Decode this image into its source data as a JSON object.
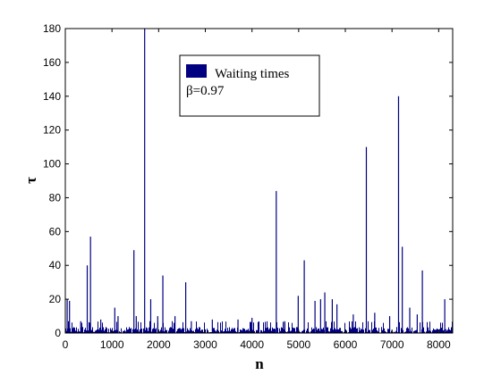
{
  "chart_data": {
    "type": "bar",
    "title": "",
    "xlabel": "n",
    "ylabel": "τ",
    "xlim": [
      0,
      8300
    ],
    "ylim": [
      0,
      180
    ],
    "xticks": [
      0,
      1000,
      2000,
      3000,
      4000,
      5000,
      6000,
      7000,
      8000
    ],
    "yticks": [
      0,
      20,
      40,
      60,
      80,
      100,
      120,
      140,
      160,
      180
    ],
    "grid": false,
    "legend_position": "top-center",
    "series": [
      {
        "name": "Waiting times",
        "color": "#000080",
        "baseline_noise_max": 7,
        "points": [
          {
            "x": 40,
            "y": 20
          },
          {
            "x": 90,
            "y": 19
          },
          {
            "x": 330,
            "y": 7
          },
          {
            "x": 470,
            "y": 40
          },
          {
            "x": 540,
            "y": 57
          },
          {
            "x": 760,
            "y": 8
          },
          {
            "x": 1060,
            "y": 15
          },
          {
            "x": 1130,
            "y": 10
          },
          {
            "x": 1470,
            "y": 49
          },
          {
            "x": 1520,
            "y": 10
          },
          {
            "x": 1700,
            "y": 180
          },
          {
            "x": 1830,
            "y": 20
          },
          {
            "x": 1980,
            "y": 10
          },
          {
            "x": 2090,
            "y": 34
          },
          {
            "x": 2350,
            "y": 10
          },
          {
            "x": 2580,
            "y": 30
          },
          {
            "x": 2700,
            "y": 7
          },
          {
            "x": 3150,
            "y": 8
          },
          {
            "x": 3700,
            "y": 8
          },
          {
            "x": 4000,
            "y": 9
          },
          {
            "x": 4520,
            "y": 84
          },
          {
            "x": 4700,
            "y": 7
          },
          {
            "x": 4990,
            "y": 22
          },
          {
            "x": 5120,
            "y": 43
          },
          {
            "x": 5350,
            "y": 19
          },
          {
            "x": 5470,
            "y": 20
          },
          {
            "x": 5560,
            "y": 24
          },
          {
            "x": 5720,
            "y": 20
          },
          {
            "x": 5820,
            "y": 17
          },
          {
            "x": 6170,
            "y": 11
          },
          {
            "x": 6450,
            "y": 110
          },
          {
            "x": 6630,
            "y": 12
          },
          {
            "x": 6950,
            "y": 10
          },
          {
            "x": 7140,
            "y": 140
          },
          {
            "x": 7220,
            "y": 51
          },
          {
            "x": 7380,
            "y": 15
          },
          {
            "x": 7540,
            "y": 11
          },
          {
            "x": 7650,
            "y": 37
          },
          {
            "x": 8130,
            "y": 20
          }
        ]
      }
    ],
    "legend_extra": "β=0.97"
  }
}
